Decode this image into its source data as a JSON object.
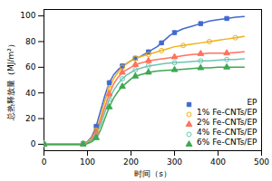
{
  "chart_data": {
    "type": "line",
    "xlabel": "时间（s）",
    "ylabel": "总热释放量（MJ/m²）",
    "xlim": [
      0,
      500
    ],
    "ylim": [
      -5,
      105
    ],
    "xticks": [
      0,
      100,
      200,
      300,
      400,
      500
    ],
    "yticks": [
      0,
      20,
      40,
      60,
      80,
      100
    ],
    "legend": "lower right",
    "series": [
      {
        "name": "EP",
        "marker": "square",
        "x": [
          0,
          50,
          80,
          90,
          100,
          110,
          120,
          130,
          140,
          150,
          160,
          170,
          180,
          190,
          200,
          210,
          220,
          230,
          240,
          250,
          260,
          270,
          280,
          290,
          300,
          320,
          340,
          360,
          380,
          400,
          420,
          440,
          460
        ],
        "values": [
          0,
          0,
          0,
          0.5,
          2,
          6,
          14,
          26,
          38,
          48,
          54,
          58,
          61,
          63,
          65,
          67,
          68,
          70,
          72,
          74,
          76,
          79,
          82,
          85,
          87,
          90,
          92,
          94,
          96,
          97,
          98,
          99,
          99.5
        ]
      },
      {
        "name": "1% Fe-CNTs/EP",
        "marker": "circle-open",
        "x": [
          0,
          50,
          80,
          90,
          100,
          110,
          120,
          130,
          140,
          150,
          160,
          170,
          180,
          190,
          200,
          210,
          220,
          230,
          240,
          250,
          260,
          270,
          280,
          300,
          320,
          340,
          360,
          380,
          400,
          420,
          440,
          460
        ],
        "values": [
          0,
          0,
          0,
          0.3,
          1.5,
          5,
          11,
          21,
          34,
          44,
          51,
          56,
          60,
          63,
          65,
          67,
          68,
          69,
          70,
          71,
          72,
          73,
          74,
          76,
          77,
          78,
          79,
          80,
          81,
          82,
          83,
          84
        ]
      },
      {
        "name": "2% Fe-CNTs/EP",
        "marker": "triangle",
        "x": [
          0,
          50,
          80,
          90,
          100,
          110,
          120,
          130,
          140,
          150,
          160,
          170,
          180,
          190,
          200,
          210,
          220,
          230,
          240,
          260,
          280,
          300,
          320,
          340,
          360,
          380,
          400,
          420,
          440,
          460
        ],
        "values": [
          0,
          0,
          0,
          0.2,
          1,
          4,
          9,
          18,
          29,
          39,
          47,
          52,
          56,
          58,
          60,
          62,
          63,
          64,
          65,
          66,
          67,
          68,
          69,
          70,
          70.5,
          71,
          71,
          71,
          71.5,
          72
        ]
      },
      {
        "name": "4% Fe-CNTs/EP",
        "marker": "circle-open",
        "x": [
          0,
          50,
          80,
          90,
          100,
          110,
          120,
          130,
          140,
          150,
          160,
          170,
          180,
          190,
          200,
          210,
          220,
          230,
          240,
          260,
          280,
          300,
          320,
          340,
          360,
          380,
          400,
          420,
          440,
          460
        ],
        "values": [
          0,
          0,
          0,
          0.2,
          0.8,
          3,
          7,
          15,
          25,
          35,
          42,
          47,
          51,
          54,
          56,
          58,
          59,
          60,
          61,
          62,
          63,
          63.5,
          64,
          64.5,
          65,
          65,
          65.5,
          66,
          66,
          66.5
        ]
      },
      {
        "name": "6% Fe-CNTs/EP",
        "marker": "triangle",
        "x": [
          0,
          50,
          80,
          90,
          100,
          110,
          120,
          130,
          140,
          150,
          160,
          170,
          180,
          190,
          200,
          210,
          220,
          230,
          240,
          260,
          280,
          300,
          320,
          340,
          360,
          380,
          400,
          420,
          440,
          460
        ],
        "values": [
          0,
          0,
          0,
          0.1,
          0.5,
          2,
          5,
          11,
          20,
          29,
          36,
          41,
          45,
          48,
          51,
          53,
          54,
          55,
          56,
          57,
          57.5,
          58,
          58.5,
          59,
          59.5,
          59.5,
          60,
          60,
          60,
          60
        ]
      }
    ]
  }
}
